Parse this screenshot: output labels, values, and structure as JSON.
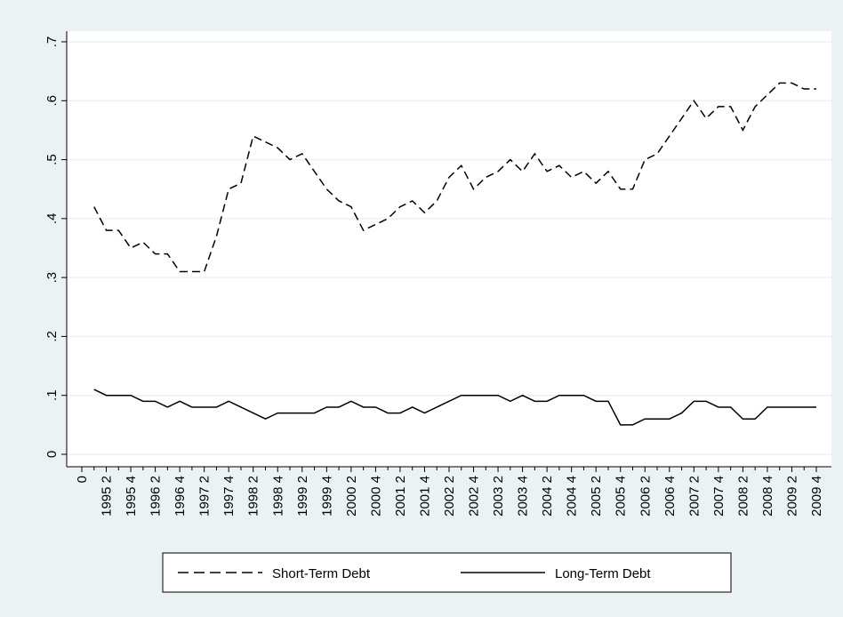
{
  "chart_data": {
    "type": "line",
    "categories": [
      "0",
      null,
      "1995 2",
      null,
      "1995 4",
      null,
      "1996 2",
      null,
      "1996 4",
      null,
      "1997 2",
      null,
      "1997 4",
      null,
      "1998 2",
      null,
      "1998 4",
      null,
      "1999 2",
      null,
      "1999 4",
      null,
      "2000 2",
      null,
      "2000 4",
      null,
      "2001 2",
      null,
      "2001 4",
      null,
      "2002 2",
      null,
      "2002 4",
      null,
      "2003 2",
      null,
      "2003 4",
      null,
      "2004 2",
      null,
      "2004 4",
      null,
      "2005 2",
      null,
      "2005 4",
      null,
      "2006 2",
      null,
      "2006 4",
      null,
      "2007 2",
      null,
      "2007 4",
      null,
      "2008 2",
      null,
      "2008 4",
      null,
      "2009 2",
      null,
      "2009 4"
    ],
    "series": [
      {
        "name": "Short-Term Debt",
        "color": "#000000",
        "style": "dash",
        "values": [
          null,
          0.42,
          0.38,
          0.38,
          0.35,
          0.36,
          0.34,
          0.34,
          0.31,
          0.31,
          0.31,
          0.37,
          0.45,
          0.46,
          0.54,
          0.53,
          0.52,
          0.5,
          0.51,
          0.48,
          0.45,
          0.43,
          0.42,
          0.38,
          0.39,
          0.4,
          0.42,
          0.43,
          0.41,
          0.43,
          0.47,
          0.49,
          0.45,
          0.47,
          0.48,
          0.5,
          0.48,
          0.51,
          0.48,
          0.49,
          0.47,
          0.48,
          0.46,
          0.48,
          0.45,
          0.45,
          0.5,
          0.51,
          0.54,
          0.57,
          0.6,
          0.57,
          0.59,
          0.59,
          0.55,
          0.59,
          0.61,
          0.63,
          0.63,
          0.62,
          0.62
        ]
      },
      {
        "name": "Long-Term Debt",
        "color": "#000000",
        "style": "solid",
        "values": [
          null,
          0.11,
          0.1,
          0.1,
          0.1,
          0.09,
          0.09,
          0.08,
          0.09,
          0.08,
          0.08,
          0.08,
          0.09,
          0.08,
          0.07,
          0.06,
          0.07,
          0.07,
          0.07,
          0.07,
          0.08,
          0.08,
          0.09,
          0.08,
          0.08,
          0.07,
          0.07,
          0.08,
          0.07,
          0.08,
          0.09,
          0.1,
          0.1,
          0.1,
          0.1,
          0.09,
          0.1,
          0.09,
          0.09,
          0.1,
          0.1,
          0.1,
          0.09,
          0.09,
          0.05,
          0.05,
          0.06,
          0.06,
          0.06,
          0.07,
          0.09,
          0.09,
          0.08,
          0.08,
          0.06,
          0.06,
          0.08,
          0.08,
          0.08,
          0.08,
          0.08
        ]
      }
    ],
    "ylim": [
      0,
      0.7
    ],
    "yticks": [
      0,
      {
        "value": 0.1,
        "label": ".1"
      },
      {
        "value": 0.2,
        "label": ".2"
      },
      {
        "value": 0.3,
        "label": ".3"
      },
      {
        "value": 0.4,
        "label": ".4"
      },
      {
        "value": 0.5,
        "label": ".5"
      },
      {
        "value": 0.6,
        "label": ".6"
      },
      {
        "value": 0.7,
        "label": ".7"
      }
    ],
    "grid": true,
    "legend": "bottom"
  }
}
